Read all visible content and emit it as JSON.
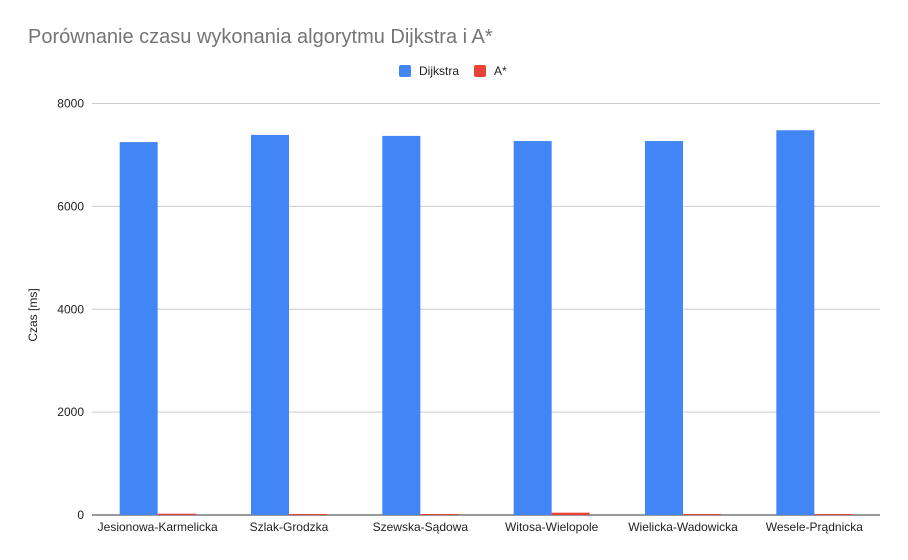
{
  "chart_data": {
    "type": "bar",
    "title": "Porównanie czasu wykonania algorytmu Dijkstra i A*",
    "xlabel": "",
    "ylabel": "Czas [ms]",
    "ylim": [
      0,
      8000
    ],
    "yticks": [
      "0",
      "2000",
      "4000",
      "6000",
      "8000"
    ],
    "ytick_values": [
      0,
      2000,
      4000,
      6000,
      8000
    ],
    "grid": true,
    "legend_position": "top-center",
    "categories": [
      "Jesionowa-Karmelicka",
      "Szlak-Grodzka",
      "Szewska-Sądowa",
      "Witosa-Wielopole",
      "Wielicka-Wadowicka",
      "Wesele-Prądnicka"
    ],
    "series": [
      {
        "name": "Dijkstra",
        "color": "#4285f4",
        "values": [
          7250,
          7390,
          7370,
          7270,
          7270,
          7480
        ]
      },
      {
        "name": "A*",
        "color": "#ea4335",
        "values": [
          25,
          10,
          10,
          45,
          10,
          10
        ]
      }
    ]
  }
}
